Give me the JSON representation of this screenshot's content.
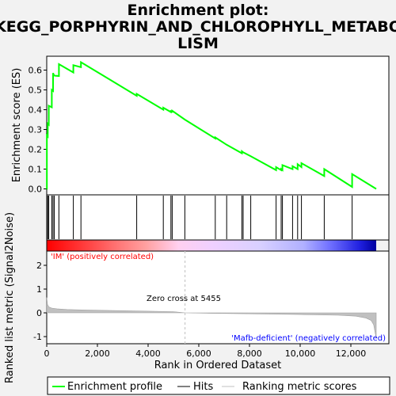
{
  "title_line1": "Enrichment plot:",
  "title_line2": "KEGG_PORPHYRIN_AND_CHLOROPHYLL_METABO",
  "title_line3": "LISM",
  "chart_data": {
    "type": "line",
    "es_axis": {
      "ylabel": "Enrichment score (ES)",
      "ylim": [
        -0.03,
        0.67
      ],
      "yticks": [
        0.0,
        0.1,
        0.2,
        0.3,
        0.4,
        0.5,
        0.6
      ],
      "ytick_labels": [
        "0.0",
        "0.1",
        "0.2",
        "0.3",
        "0.4",
        "0.5",
        "0.6"
      ]
    },
    "metric_axis": {
      "ylabel": "Ranked list metric (Signal2Noise)",
      "ylim": [
        -1.3,
        2.6
      ],
      "yticks": [
        -1,
        0,
        1,
        2
      ],
      "ytick_labels": [
        "-1",
        "0",
        "1",
        "2"
      ]
    },
    "xaxis": {
      "xlabel": "Rank in Ordered Dataset",
      "xlim": [
        0,
        13500
      ],
      "xticks": [
        0,
        2000,
        4000,
        6000,
        8000,
        10000,
        12000
      ],
      "xtick_labels": [
        "0",
        "2,000",
        "4,000",
        "6,000",
        "8,000",
        "10,000",
        "12,000"
      ]
    },
    "n_genes": 13000,
    "hits": [
      5,
      40,
      80,
      200,
      250,
      300,
      480,
      1050,
      1350,
      3550,
      4600,
      4900,
      4950,
      5450,
      6650,
      7100,
      7700,
      7750,
      8050,
      9050,
      9250,
      9300,
      9700,
      9900,
      10050,
      10950,
      12050
    ],
    "es_profile": {
      "x": [
        0,
        5,
        5,
        40,
        40,
        80,
        80,
        200,
        200,
        250,
        250,
        300,
        300,
        480,
        480,
        1050,
        1050,
        1350,
        1350,
        3550,
        3550,
        4600,
        4600,
        4900,
        4900,
        4950,
        4950,
        5450,
        5450,
        6650,
        6650,
        7100,
        7100,
        7700,
        7700,
        7750,
        7750,
        8050,
        8050,
        9050,
        9050,
        9250,
        9250,
        9300,
        9300,
        9700,
        9700,
        9900,
        9900,
        10050,
        10050,
        10950,
        10950,
        12050,
        12050,
        13000
      ],
      "y": [
        0.0,
        0.0,
        0.27,
        0.265,
        0.33,
        0.325,
        0.42,
        0.412,
        0.5,
        0.495,
        0.585,
        0.57,
        0.572,
        0.57,
        0.63,
        0.588,
        0.625,
        0.615,
        0.64,
        0.47,
        0.48,
        0.4,
        0.41,
        0.388,
        0.393,
        0.39,
        0.395,
        0.35,
        0.35,
        0.255,
        0.26,
        0.223,
        0.223,
        0.18,
        0.19,
        0.185,
        0.185,
        0.165,
        0.165,
        0.095,
        0.11,
        0.095,
        0.1,
        0.095,
        0.12,
        0.1,
        0.115,
        0.1,
        0.125,
        0.11,
        0.13,
        0.065,
        0.1,
        0.01,
        0.075,
        0.0
      ]
    },
    "metric_profile": {
      "x": [
        0,
        30,
        80,
        200,
        400,
        800,
        1500,
        3000,
        5000,
        5455,
        6500,
        8000,
        10000,
        11500,
        12200,
        12600,
        12800,
        12900,
        12960,
        13000
      ],
      "y": [
        0.65,
        0.35,
        0.25,
        0.2,
        0.17,
        0.14,
        0.12,
        0.09,
        0.05,
        0.0,
        -0.02,
        -0.04,
        -0.07,
        -0.1,
        -0.14,
        -0.22,
        -0.32,
        -0.5,
        -0.85,
        -1.05
      ]
    },
    "zero_cross_label": "Zero cross at 5455",
    "zero_cross_rank": 5455,
    "positive_label": "'IM' (positively correlated)",
    "negative_label": "'Mafb-deficient' (negatively correlated)",
    "legend": [
      "Enrichment profile",
      "Hits",
      "Ranking metric scores"
    ],
    "colors": {
      "es_line": "#00ff00",
      "hits": "#000000",
      "metric_fill": "#c0c0c0",
      "positive_text": "#ff0000",
      "negative_text": "#0000ff",
      "zero_line": "#c8c8c8"
    }
  }
}
